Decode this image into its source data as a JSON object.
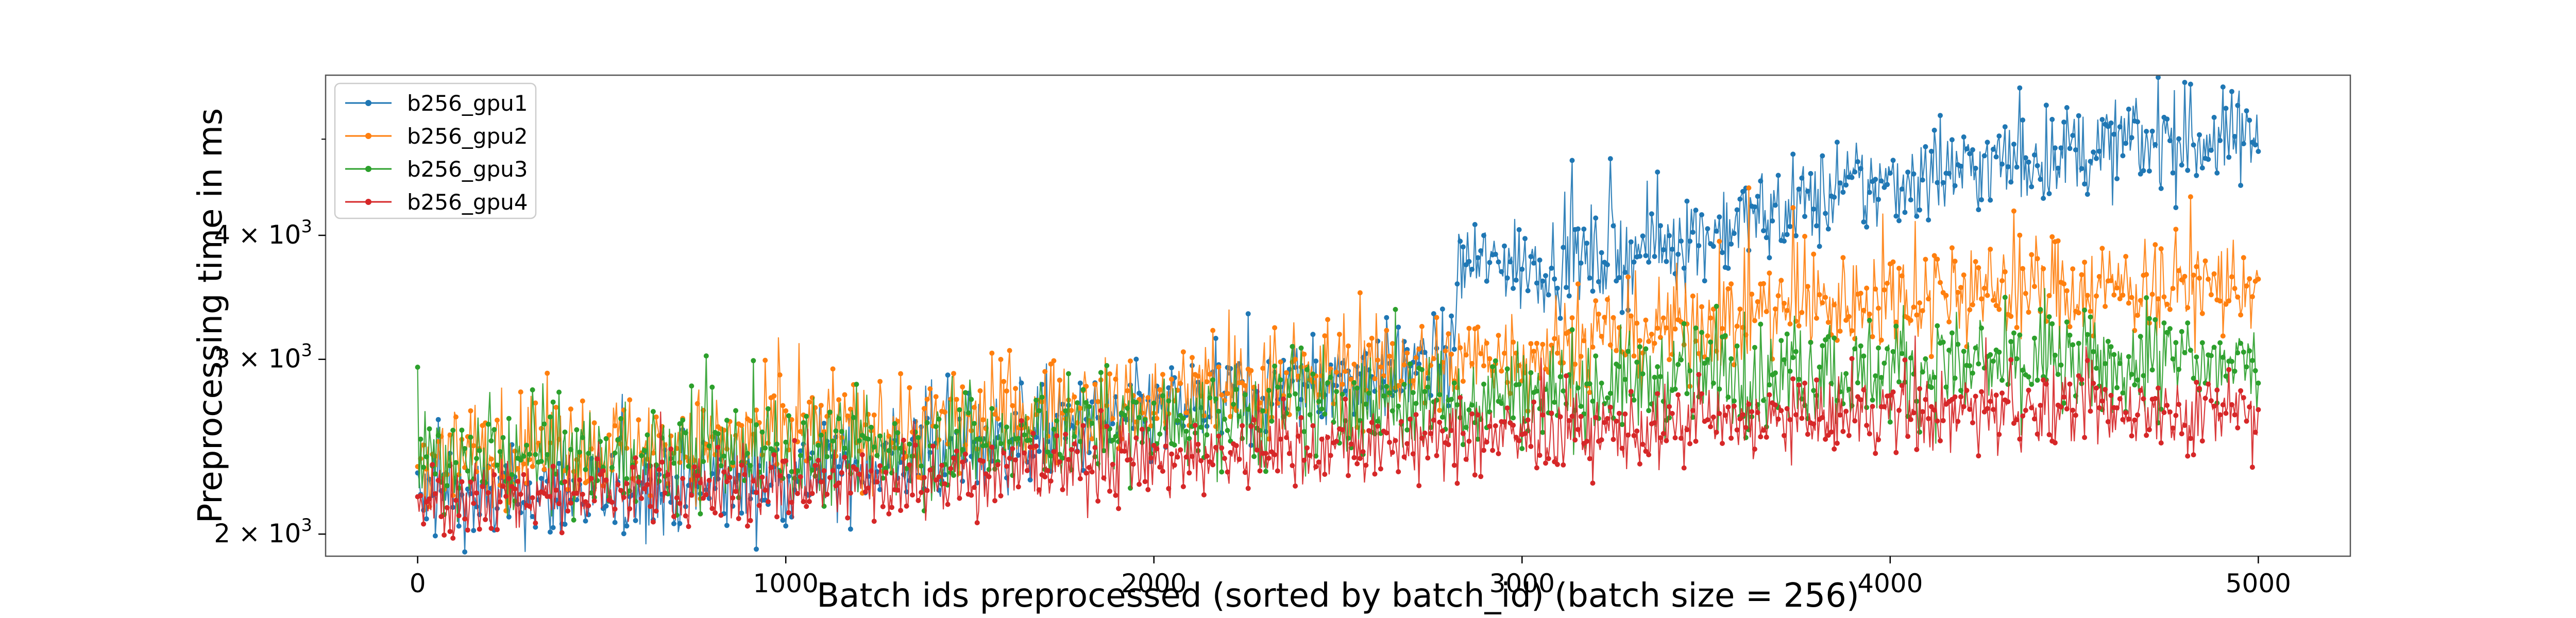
{
  "chart_data": {
    "type": "line",
    "title": "",
    "xlabel": "Batch ids preprocessed (sorted by batch_id) (batch size = 256)",
    "ylabel": "Preprocessing time in ms",
    "xlim": [
      -250,
      5250
    ],
    "ylim": [
      1900,
      5800
    ],
    "yscale": "log",
    "x_ticks": [
      0,
      1000,
      2000,
      3000,
      4000,
      5000
    ],
    "x_tick_labels": [
      "0",
      "1000",
      "2000",
      "3000",
      "4000",
      "5000"
    ],
    "y_ticks": [
      2000,
      3000,
      4000
    ],
    "y_tick_labels": [
      {
        "base": "2 × 10",
        "exp": "3"
      },
      {
        "base": "3 × 10",
        "exp": "3"
      },
      {
        "base": "4 × 10",
        "exp": "3"
      }
    ],
    "grid": false,
    "legend_position": "top-left",
    "marker": "dot",
    "series": [
      {
        "name": "b256_gpu1",
        "color": "#1f77b4",
        "x": [
          0,
          250,
          500,
          750,
          1000,
          1250,
          1500,
          1750,
          2000,
          2250,
          2500,
          2750,
          2810,
          2830,
          3000,
          3250,
          3500,
          3750,
          4000,
          4250,
          4500,
          4750,
          5000
        ],
        "y": [
          2180,
          2170,
          2190,
          2230,
          2280,
          2360,
          2440,
          2540,
          2640,
          2750,
          2850,
          2960,
          2980,
          3760,
          3720,
          3820,
          4020,
          4300,
          4520,
          4700,
          4850,
          4960,
          5000
        ],
        "noise": 0.055
      },
      {
        "name": "b256_gpu2",
        "color": "#ff7f0e",
        "x": [
          0,
          250,
          500,
          750,
          1000,
          1250,
          1500,
          1750,
          2000,
          2250,
          2500,
          2750,
          3000,
          3250,
          3500,
          3750,
          4000,
          4250,
          4500,
          4750,
          5000
        ],
        "y": [
          2400,
          2430,
          2450,
          2470,
          2500,
          2540,
          2590,
          2650,
          2720,
          2800,
          2880,
          2950,
          3040,
          3160,
          3280,
          3380,
          3470,
          3520,
          3540,
          3560,
          3560
        ],
        "noise": 0.06
      },
      {
        "name": "b256_gpu3",
        "color": "#2ca02c",
        "x": [
          0,
          250,
          500,
          750,
          1000,
          1250,
          1500,
          1750,
          2000,
          2250,
          2500,
          2750,
          3000,
          3250,
          3500,
          3750,
          4000,
          4250,
          4500,
          4750,
          5000
        ],
        "y": [
          2350,
          2360,
          2370,
          2390,
          2410,
          2440,
          2470,
          2520,
          2570,
          2620,
          2670,
          2720,
          2780,
          2830,
          2870,
          2900,
          2920,
          2940,
          2950,
          2950,
          2950
        ],
        "noise": 0.06
      },
      {
        "name": "b256_gpu4",
        "color": "#d62728",
        "x": [
          0,
          250,
          500,
          750,
          1000,
          1250,
          1500,
          1750,
          2000,
          2250,
          2500,
          2750,
          3000,
          3250,
          3500,
          3750,
          4000,
          4250,
          4500,
          4750,
          5000
        ],
        "y": [
          2180,
          2190,
          2200,
          2220,
          2240,
          2260,
          2290,
          2330,
          2370,
          2410,
          2450,
          2480,
          2510,
          2540,
          2570,
          2600,
          2630,
          2650,
          2660,
          2660,
          2640
        ],
        "noise": 0.045
      }
    ]
  }
}
